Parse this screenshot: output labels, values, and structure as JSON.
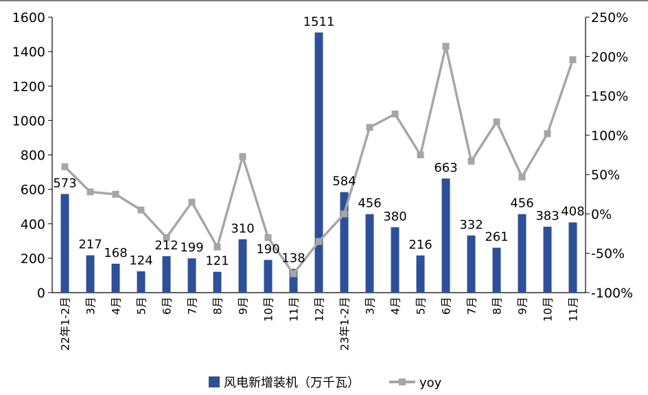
{
  "chart_data": {
    "type": "bar",
    "categories": [
      "22年1-2月",
      "3月",
      "4月",
      "5月",
      "6月",
      "7月",
      "8月",
      "9月",
      "10月",
      "11月",
      "12月",
      "23年1-2月",
      "3月",
      "4月",
      "5月",
      "6月",
      "7月",
      "8月",
      "9月",
      "10月",
      "11月"
    ],
    "series": [
      {
        "name": "风电新增装机（万千瓦）",
        "type": "bar",
        "axis": "left",
        "color": "#2e4f9a",
        "values": [
          573,
          217,
          168,
          124,
          212,
          199,
          121,
          310,
          190,
          138,
          1511,
          584,
          456,
          380,
          216,
          663,
          332,
          261,
          456,
          383,
          408
        ],
        "labels": [
          "573",
          "217",
          "168",
          "124",
          "212",
          "199",
          "121",
          "310",
          "190",
          "138",
          "1511",
          "584",
          "456",
          "380",
          "216",
          "663",
          "332",
          "261",
          "456",
          "383",
          "408"
        ]
      },
      {
        "name": "yoy",
        "type": "line",
        "axis": "right",
        "color": "#a6a6a6",
        "values": [
          60,
          28,
          25,
          5,
          -30,
          15,
          -42,
          73,
          -30,
          -76,
          -35,
          0,
          110,
          127,
          75,
          213,
          67,
          117,
          47,
          102,
          196
        ]
      }
    ],
    "y_left": {
      "ylim": [
        0,
        1600
      ],
      "ticks": [
        "0",
        "200",
        "400",
        "600",
        "800",
        "1000",
        "1200",
        "1400",
        "1600"
      ]
    },
    "y_right": {
      "ylim": [
        -100,
        250
      ],
      "ticks": [
        "-100%",
        "-50%",
        "0%",
        "50%",
        "100%",
        "150%",
        "200%",
        "250%"
      ]
    },
    "legend": {
      "position": "bottom",
      "entries": [
        "风电新增装机（万千瓦）",
        "yoy"
      ]
    },
    "grid": false
  }
}
